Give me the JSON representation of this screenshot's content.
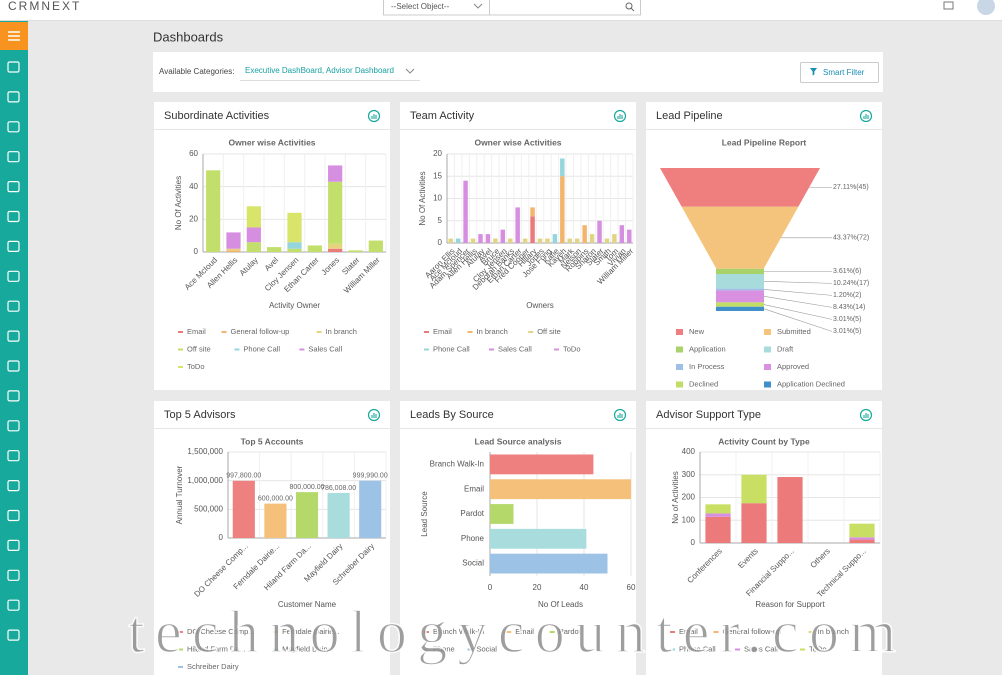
{
  "topbar": {
    "logo": "CRMNEXT",
    "select_placeholder": "--Select Object--"
  },
  "page_title": "Dashboards",
  "filter": {
    "label": "Available Categories:",
    "value": "Executive DashBoard, Advisor Dashboard",
    "button": "Smart Filter"
  },
  "panels": [
    {
      "title": "Subordinate Activities",
      "chart": {
        "type": "bar",
        "stacked": true,
        "title": "Owner wise Activities",
        "y_label": "No Of Activities",
        "x_label": "Activity Owner",
        "categories": [
          "Ace McIoud",
          "Allen Hellis",
          "Atulay",
          "Avel",
          "Cloy Jensen",
          "Ethan Carter",
          "Jones",
          "Slater",
          "William Miller"
        ],
        "series": [
          {
            "name": "Email",
            "color": "#ec7a7a",
            "values": [
              0,
              0,
              0,
              0,
              0,
              0,
              2,
              0,
              0
            ]
          },
          {
            "name": "General follow-up",
            "color": "#f3b56b",
            "values": [
              0,
              1,
              0,
              0,
              0,
              0,
              0,
              0,
              0
            ]
          },
          {
            "name": "In branch",
            "color": "#e5d37d",
            "values": [
              0,
              1,
              0,
              0,
              0,
              0,
              3,
              0,
              0
            ]
          },
          {
            "name": "Off site",
            "color": "#c3df6b",
            "values": [
              50,
              0,
              6,
              3,
              2,
              4,
              38,
              1,
              7
            ]
          },
          {
            "name": "Phone Call",
            "color": "#94d6dc",
            "values": [
              0,
              0,
              0,
              0,
              4,
              0,
              0,
              0,
              0
            ]
          },
          {
            "name": "Sales Call",
            "color": "#d68fe0",
            "values": [
              0,
              10,
              9,
              0,
              0,
              0,
              10,
              0,
              0
            ]
          },
          {
            "name": "ToDo",
            "color": "#d9e46a",
            "values": [
              0,
              0,
              13,
              0,
              18,
              0,
              0,
              0,
              0
            ]
          }
        ],
        "ylim": [
          0,
          60
        ],
        "yticks": [
          0,
          20,
          40,
          60
        ],
        "grid": true
      }
    },
    {
      "title": "Team Activity",
      "chart": {
        "type": "bar",
        "stacked": true,
        "title": "Owner wise Activities",
        "y_label": "No Of Activities",
        "x_label": "Owners",
        "categories": [
          "Aaron Ellis",
          "Ace McIoud",
          "Adam Spencer",
          "Allen Hellis",
          "Atulay",
          "Avel",
          "Bruce",
          "Cloy Jensen",
          "Deborah Banks",
          "Ethan Carter",
          "Fred Cooper",
          "Hillary",
          "Jones",
          "Jose Fong",
          "Katie",
          "Kaveh",
          "Mark",
          "Nelson",
          "Robbins",
          "Sharon",
          "Slater",
          "Smith",
          "Tom",
          "Vivian",
          "William Miller"
        ],
        "series": [
          {
            "name": "Email",
            "color": "#ec7a7a",
            "values": [
              0,
              0,
              0,
              0,
              0,
              0,
              0,
              0,
              0,
              0,
              0,
              6,
              0,
              0,
              0,
              0,
              0,
              0,
              0,
              0,
              0,
              0,
              0,
              0,
              0
            ]
          },
          {
            "name": "In branch",
            "color": "#f3b56b",
            "values": [
              0,
              0,
              0,
              0,
              0,
              0,
              0,
              0,
              0,
              0,
              0,
              2,
              0,
              0,
              0,
              15,
              0,
              0,
              4,
              0,
              0,
              0,
              0,
              0,
              0
            ]
          },
          {
            "name": "Off site",
            "color": "#e1d487",
            "values": [
              1,
              0,
              0,
              1,
              0,
              0,
              1,
              0,
              1,
              0,
              1,
              0,
              1,
              1,
              0,
              0,
              1,
              1,
              0,
              2,
              0,
              1,
              2,
              0,
              0
            ]
          },
          {
            "name": "Phone Call",
            "color": "#94d6dc",
            "values": [
              0,
              1,
              0,
              0,
              0,
              0,
              0,
              0,
              0,
              0,
              0,
              0,
              0,
              0,
              2,
              4,
              0,
              0,
              0,
              0,
              0,
              0,
              0,
              0,
              0
            ]
          },
          {
            "name": "Sales Call",
            "color": "#d68fe0",
            "values": [
              0,
              0,
              14,
              0,
              2,
              2,
              0,
              3,
              0,
              8,
              0,
              0,
              0,
              0,
              0,
              0,
              0,
              0,
              0,
              0,
              5,
              0,
              0,
              4,
              3
            ]
          },
          {
            "name": "ToDo",
            "color": "#d395d8",
            "values": [
              0,
              0,
              0,
              0,
              0,
              0,
              0,
              0,
              0,
              0,
              0,
              0,
              0,
              0,
              0,
              0,
              0,
              0,
              0,
              0,
              0,
              0,
              0,
              0,
              0
            ]
          }
        ],
        "ylim": [
          0,
          20
        ],
        "yticks": [
          0,
          5,
          10,
          15,
          20
        ],
        "grid": true
      }
    },
    {
      "title": "Lead Pipeline",
      "chart": {
        "type": "funnel",
        "title": "Lead Pipeline Report",
        "categories": [
          "New",
          "Submitted",
          "Application",
          "Draft",
          "In Process",
          "Approved",
          "Declined",
          "Application Declined"
        ],
        "values": [
          45,
          72,
          6,
          17,
          2,
          14,
          5,
          5
        ],
        "value_labels": [
          "27.11%(45)",
          "43.37%(72)",
          "3.61%(6)",
          "10.24%(17)",
          "1.20%(2)",
          "8.43%(14)",
          "3.01%(5)",
          "3.01%(5)"
        ],
        "colors": [
          "#ef7f7f",
          "#f4c47c",
          "#a9d26b",
          "#a8dcdc",
          "#9dbfe8",
          "#d990e0",
          "#c2dd65",
          "#3f8fc9"
        ]
      }
    },
    {
      "title": "Top 5 Advisors",
      "chart": {
        "type": "bar",
        "title": "Top 5 Accounts",
        "y_label": "Annual Turnover",
        "x_label": "Customer Name",
        "categories": [
          "DO Cheese Comp...",
          "Ferndale Dairie...",
          "Hiland Farm Da...",
          "Mayfield Dairy",
          "Schreiber Dairy"
        ],
        "values": [
          997800,
          600000,
          800000,
          786008,
          999990
        ],
        "value_labels": [
          "997,800.00",
          "600,000.00",
          "800,000.00",
          "786,008.00",
          "999,990.00"
        ],
        "colors": [
          "#ef8080",
          "#f4c07a",
          "#b4d86a",
          "#a9dcdc",
          "#9cc3e6"
        ],
        "ylim": [
          0,
          1500000
        ],
        "yticks": [
          0,
          {
            "value": 500000,
            "label": "500,000"
          },
          {
            "value": 1000000,
            "label": "1,000,000"
          },
          {
            "value": 1500000,
            "label": "1,500,000"
          }
        ],
        "grid": true
      }
    },
    {
      "title": "Leads By Source",
      "chart": {
        "type": "bar",
        "horizontal": true,
        "title": "Lead Source analysis",
        "y_label": "Lead Source",
        "x_label": "No Of Leads",
        "categories": [
          "Branch Walk-In",
          "Email",
          "Pardot",
          "Phone",
          "Social"
        ],
        "values": [
          44,
          60,
          10,
          41,
          50
        ],
        "colors": [
          "#ef8080",
          "#f4c07a",
          "#b4d86a",
          "#a9dcdc",
          "#9cc3e6"
        ],
        "xlim": [
          0,
          60
        ],
        "xticks": [
          0,
          20,
          40,
          60
        ],
        "grid": true
      }
    },
    {
      "title": "Advisor Support Type",
      "chart": {
        "type": "bar",
        "stacked": true,
        "title": "Activity Count by Type",
        "y_label": "No of Activities",
        "x_label": "Reason for Support",
        "categories": [
          "Conferences",
          "Events",
          "Financial Suppo...",
          "Others",
          "Technical Suppo..."
        ],
        "series": [
          {
            "name": "Email",
            "color": "#ec7a7a",
            "values": [
              115,
              175,
              290,
              0,
              15
            ]
          },
          {
            "name": "General follow-up",
            "color": "#f3b56b",
            "values": [
              0,
              0,
              0,
              0,
              0
            ]
          },
          {
            "name": "In branch",
            "color": "#e5d37d",
            "values": [
              0,
              0,
              0,
              0,
              0
            ]
          },
          {
            "name": "Phone Call",
            "color": "#94d6dc",
            "values": [
              0,
              0,
              0,
              0,
              0
            ]
          },
          {
            "name": "Sales Call",
            "color": "#d68fe0",
            "values": [
              15,
              0,
              0,
              0,
              10
            ]
          },
          {
            "name": "ToDo",
            "color": "#c8df63",
            "values": [
              40,
              125,
              0,
              0,
              60
            ]
          }
        ],
        "ylim": [
          0,
          400
        ],
        "yticks": [
          0,
          100,
          200,
          300,
          400
        ],
        "grid": true
      }
    }
  ],
  "watermark": "technologycounter.com"
}
